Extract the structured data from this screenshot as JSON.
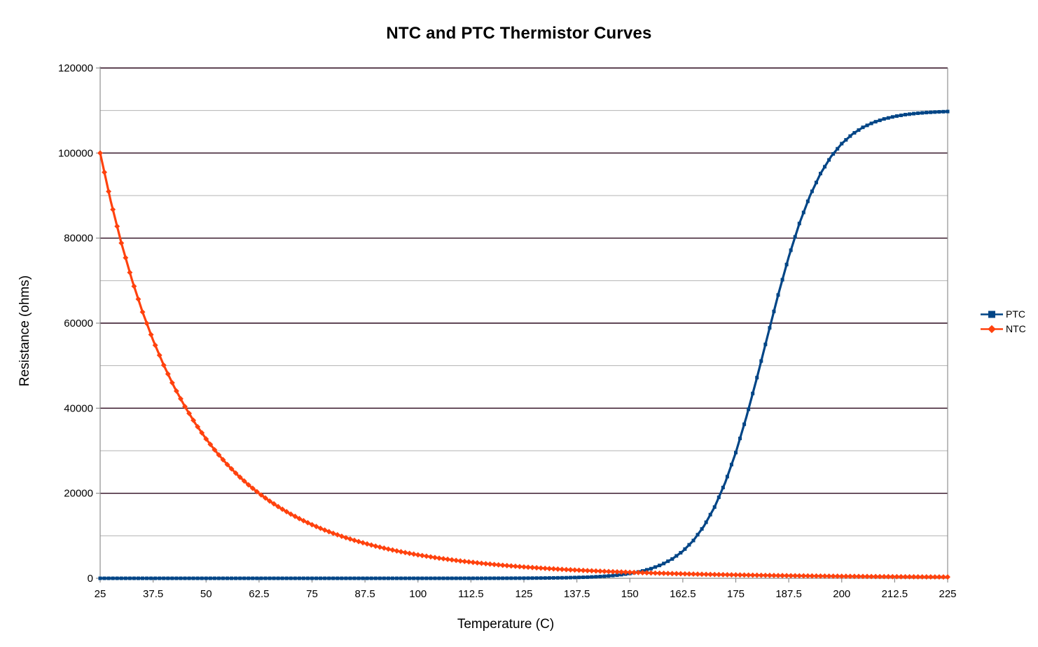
{
  "chart_data": {
    "type": "line",
    "title": "NTC and PTC Thermistor Curves",
    "xlabel": "Temperature (C)",
    "ylabel": "Resistance (ohms)",
    "xlim": [
      25,
      225
    ],
    "ylim": [
      0,
      120000
    ],
    "x_ticks": [
      25,
      37.5,
      50,
      62.5,
      75,
      87.5,
      100,
      112.5,
      125,
      137.5,
      150,
      162.5,
      175,
      187.5,
      200,
      212.5,
      225
    ],
    "y_ticks": [
      0,
      20000,
      40000,
      60000,
      80000,
      100000,
      120000
    ],
    "y_major_step": 20000,
    "y_minor_step": 10000,
    "grid": "horizontal major (dark) and minor (light), no vertical gridlines",
    "legend_position": "right-middle",
    "colors": {
      "ptc": "#004586",
      "ntc": "#ff420e",
      "major_grid": "#2b0a1e",
      "minor_grid": "#b3b3b3",
      "axis": "#8f8f8f",
      "text": "#000000",
      "background": "#ffffff"
    },
    "series": [
      {
        "name": "PTC",
        "color": "#004586",
        "marker": "square",
        "points": [
          [
            25,
            0
          ],
          [
            37.5,
            0
          ],
          [
            50,
            0
          ],
          [
            62.5,
            0
          ],
          [
            75,
            0
          ],
          [
            87.5,
            0
          ],
          [
            100,
            1
          ],
          [
            105,
            2
          ],
          [
            110,
            4
          ],
          [
            115,
            8
          ],
          [
            120,
            16
          ],
          [
            125,
            32
          ],
          [
            130,
            65
          ],
          [
            135,
            132
          ],
          [
            140,
            270
          ],
          [
            142.5,
            386
          ],
          [
            145,
            551
          ],
          [
            147.5,
            786
          ],
          [
            150,
            1121
          ],
          [
            152.5,
            1596
          ],
          [
            155,
            2268
          ],
          [
            157.5,
            3216
          ],
          [
            160,
            4545
          ],
          [
            162.5,
            6373
          ],
          [
            165,
            8892
          ],
          [
            167.5,
            12287
          ],
          [
            170,
            16763
          ],
          [
            172.5,
            22495
          ],
          [
            175,
            29562
          ],
          [
            177.5,
            37892
          ],
          [
            180,
            47190
          ],
          [
            182.5,
            56965
          ],
          [
            185,
            66626
          ],
          [
            187.5,
            75581
          ],
          [
            190,
            83428
          ],
          [
            192.5,
            89957
          ],
          [
            195,
            95171
          ],
          [
            197.5,
            99197
          ],
          [
            200,
            102212
          ],
          [
            202.5,
            104434
          ],
          [
            205,
            106045
          ],
          [
            207.5,
            107202
          ],
          [
            210,
            108023
          ],
          [
            212.5,
            108610
          ],
          [
            215,
            109030
          ],
          [
            217.5,
            109322
          ],
          [
            220,
            109521
          ],
          [
            222.5,
            109666
          ],
          [
            225,
            109765
          ]
        ]
      },
      {
        "name": "NTC",
        "color": "#ff420e",
        "marker": "diamond",
        "points": [
          [
            25,
            100000
          ],
          [
            27.5,
            88698
          ],
          [
            30,
            78830
          ],
          [
            32.5,
            70192
          ],
          [
            35,
            62622
          ],
          [
            37.5,
            55973
          ],
          [
            40,
            50117
          ],
          [
            42.5,
            44952
          ],
          [
            45,
            40390
          ],
          [
            47.5,
            36351
          ],
          [
            50,
            32768
          ],
          [
            52.5,
            29585
          ],
          [
            55,
            26754
          ],
          [
            57.5,
            24229
          ],
          [
            60,
            21977
          ],
          [
            62.5,
            19962
          ],
          [
            65,
            18158
          ],
          [
            67.5,
            16540
          ],
          [
            70,
            15087
          ],
          [
            72.5,
            13779
          ],
          [
            75,
            12602
          ],
          [
            77.5,
            11540
          ],
          [
            80,
            10580
          ],
          [
            82.5,
            9712
          ],
          [
            85,
            8926
          ],
          [
            87.5,
            8213
          ],
          [
            90,
            7565
          ],
          [
            92.5,
            6977
          ],
          [
            95,
            6441
          ],
          [
            97.5,
            5953
          ],
          [
            100,
            5508
          ],
          [
            105,
            4729
          ],
          [
            110,
            4077
          ],
          [
            115,
            3528
          ],
          [
            120,
            3065
          ],
          [
            125,
            2671
          ],
          [
            130,
            2337
          ],
          [
            135,
            2050
          ],
          [
            140,
            1805
          ],
          [
            145,
            1594
          ],
          [
            150,
            1411
          ],
          [
            155,
            1253
          ],
          [
            160,
            1116
          ],
          [
            165,
            997
          ],
          [
            170,
            892
          ],
          [
            175,
            801
          ],
          [
            180,
            720
          ],
          [
            185,
            649
          ],
          [
            190,
            587
          ],
          [
            195,
            531
          ],
          [
            200,
            482
          ],
          [
            205,
            438
          ],
          [
            210,
            399
          ],
          [
            215,
            365
          ],
          [
            220,
            333
          ],
          [
            225,
            306
          ]
        ]
      }
    ]
  },
  "legend": {
    "items": [
      {
        "label": "PTC"
      },
      {
        "label": "NTC"
      }
    ]
  }
}
